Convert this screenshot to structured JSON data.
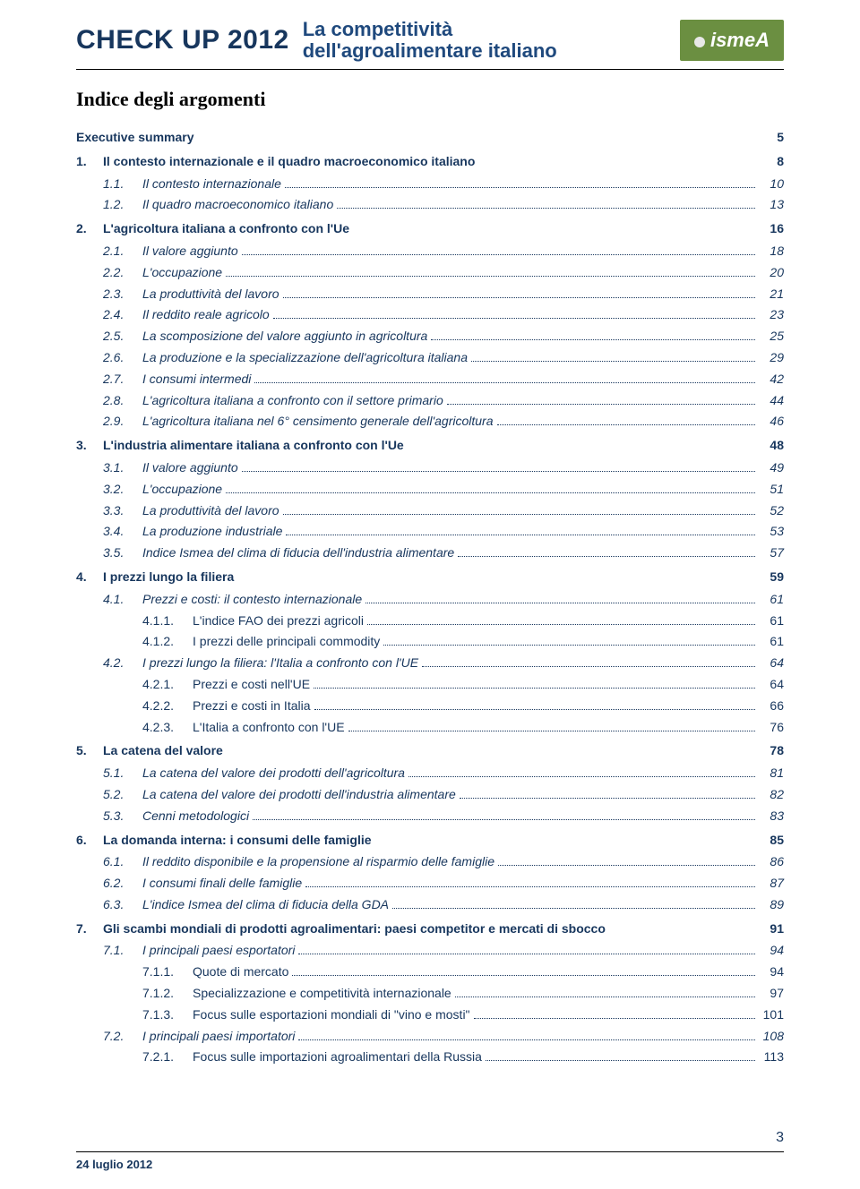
{
  "colors": {
    "heading": "#17365d",
    "text_toc": "#17365d",
    "logo_bg": "#6b8f41",
    "logo_fg": "#ffffff",
    "rule": "#000000"
  },
  "typography": {
    "header_title_size_pt": 22,
    "header_subtitle_size_pt": 16,
    "section_title_family": "Times New Roman",
    "section_title_size_pt": 16,
    "toc_size_pt": 10.5
  },
  "header": {
    "title": "CHECK UP 2012",
    "subtitle_line1": "La competitività",
    "subtitle_line2": "dell'agroalimentare italiano",
    "logo_text": "ismeA"
  },
  "section_title": "Indice degli argomenti",
  "footer": {
    "date": "24 luglio 2012",
    "page": "3"
  },
  "toc": [
    {
      "level": 0,
      "num": "",
      "label": "Executive summary",
      "page": "5",
      "leader": false
    },
    {
      "level": 0,
      "num": "1.",
      "label": "Il contesto internazionale e il quadro macroeconomico italiano",
      "page": "8",
      "leader": false
    },
    {
      "level": 1,
      "num": "1.1.",
      "label": "Il contesto internazionale",
      "page": "10",
      "leader": true
    },
    {
      "level": 1,
      "num": "1.2.",
      "label": "Il quadro macroeconomico italiano",
      "page": "13",
      "leader": true
    },
    {
      "level": 0,
      "num": "2.",
      "label": "L'agricoltura italiana a confronto con l'Ue",
      "page": "16",
      "leader": false
    },
    {
      "level": 1,
      "num": "2.1.",
      "label": "Il valore aggiunto",
      "page": "18",
      "leader": true
    },
    {
      "level": 1,
      "num": "2.2.",
      "label": "L'occupazione",
      "page": "20",
      "leader": true
    },
    {
      "level": 1,
      "num": "2.3.",
      "label": "La produttività del lavoro",
      "page": "21",
      "leader": true
    },
    {
      "level": 1,
      "num": "2.4.",
      "label": "Il reddito reale agricolo",
      "page": "23",
      "leader": true
    },
    {
      "level": 1,
      "num": "2.5.",
      "label": "La scomposizione del valore aggiunto in agricoltura",
      "page": "25",
      "leader": true
    },
    {
      "level": 1,
      "num": "2.6.",
      "label": "La produzione e la specializzazione dell'agricoltura italiana",
      "page": "29",
      "leader": true
    },
    {
      "level": 1,
      "num": "2.7.",
      "label": "I consumi intermedi",
      "page": "42",
      "leader": true
    },
    {
      "level": 1,
      "num": "2.8.",
      "label": "L'agricoltura italiana a confronto con il settore primario",
      "page": "44",
      "leader": true
    },
    {
      "level": 1,
      "num": "2.9.",
      "label": "L'agricoltura italiana nel 6° censimento generale dell'agricoltura",
      "page": "46",
      "leader": true
    },
    {
      "level": 0,
      "num": "3.",
      "label": "L'industria alimentare italiana a confronto con l'Ue",
      "page": "48",
      "leader": false
    },
    {
      "level": 1,
      "num": "3.1.",
      "label": "Il valore aggiunto",
      "page": "49",
      "leader": true
    },
    {
      "level": 1,
      "num": "3.2.",
      "label": "L'occupazione",
      "page": "51",
      "leader": true
    },
    {
      "level": 1,
      "num": "3.3.",
      "label": "La produttività del lavoro",
      "page": "52",
      "leader": true
    },
    {
      "level": 1,
      "num": "3.4.",
      "label": "La produzione industriale",
      "page": "53",
      "leader": true
    },
    {
      "level": 1,
      "num": "3.5.",
      "label": "Indice Ismea del clima di fiducia dell'industria alimentare",
      "page": "57",
      "leader": true
    },
    {
      "level": 0,
      "num": "4.",
      "label": "I prezzi lungo la filiera",
      "page": "59",
      "leader": false
    },
    {
      "level": 1,
      "num": "4.1.",
      "label": "Prezzi e costi: il contesto internazionale",
      "page": "61",
      "leader": true
    },
    {
      "level": 2,
      "num": "4.1.1.",
      "label": "L'indice FAO dei prezzi agricoli",
      "page": "61",
      "leader": true
    },
    {
      "level": 2,
      "num": "4.1.2.",
      "label": "I prezzi delle principali commodity",
      "page": "61",
      "leader": true
    },
    {
      "level": 1,
      "num": "4.2.",
      "label": "I prezzi lungo la filiera: l'Italia a confronto con l'UE",
      "page": "64",
      "leader": true
    },
    {
      "level": 2,
      "num": "4.2.1.",
      "label": "Prezzi e costi nell'UE",
      "page": "64",
      "leader": true
    },
    {
      "level": 2,
      "num": "4.2.2.",
      "label": "Prezzi e costi in Italia",
      "page": "66",
      "leader": true
    },
    {
      "level": 2,
      "num": "4.2.3.",
      "label": "L'Italia a confronto con l'UE",
      "page": "76",
      "leader": true
    },
    {
      "level": 0,
      "num": "5.",
      "label": "La catena del valore",
      "page": "78",
      "leader": false
    },
    {
      "level": 1,
      "num": "5.1.",
      "label": "La catena del valore dei prodotti dell'agricoltura",
      "page": "81",
      "leader": true
    },
    {
      "level": 1,
      "num": "5.2.",
      "label": "La catena del valore dei prodotti dell'industria alimentare",
      "page": "82",
      "leader": true
    },
    {
      "level": 1,
      "num": "5.3.",
      "label": "Cenni metodologici",
      "page": "83",
      "leader": true
    },
    {
      "level": 0,
      "num": "6.",
      "label": "La domanda interna: i consumi delle famiglie",
      "page": "85",
      "leader": false
    },
    {
      "level": 1,
      "num": "6.1.",
      "label": "Il reddito disponibile e la propensione al risparmio delle famiglie",
      "page": "86",
      "leader": true
    },
    {
      "level": 1,
      "num": "6.2.",
      "label": "I consumi finali delle famiglie",
      "page": "87",
      "leader": true
    },
    {
      "level": 1,
      "num": "6.3.",
      "label": "L'indice Ismea del clima di fiducia della GDA",
      "page": "89",
      "leader": true
    },
    {
      "level": 0,
      "num": "7.",
      "label": "Gli scambi mondiali di prodotti agroalimentari: paesi competitor e mercati di sbocco",
      "page": "91",
      "leader": false
    },
    {
      "level": 1,
      "num": "7.1.",
      "label": "I principali paesi esportatori",
      "page": "94",
      "leader": true
    },
    {
      "level": 2,
      "num": "7.1.1.",
      "label": "Quote di mercato",
      "page": "94",
      "leader": true
    },
    {
      "level": 2,
      "num": "7.1.2.",
      "label": "Specializzazione e competitività internazionale",
      "page": "97",
      "leader": true
    },
    {
      "level": 2,
      "num": "7.1.3.",
      "label": "Focus sulle esportazioni mondiali di \"vino e mosti\"",
      "page": "101",
      "leader": true
    },
    {
      "level": 1,
      "num": "7.2.",
      "label": "I principali paesi importatori",
      "page": "108",
      "leader": true
    },
    {
      "level": 2,
      "num": "7.2.1.",
      "label": "Focus sulle importazioni agroalimentari della Russia",
      "page": "113",
      "leader": true
    }
  ]
}
